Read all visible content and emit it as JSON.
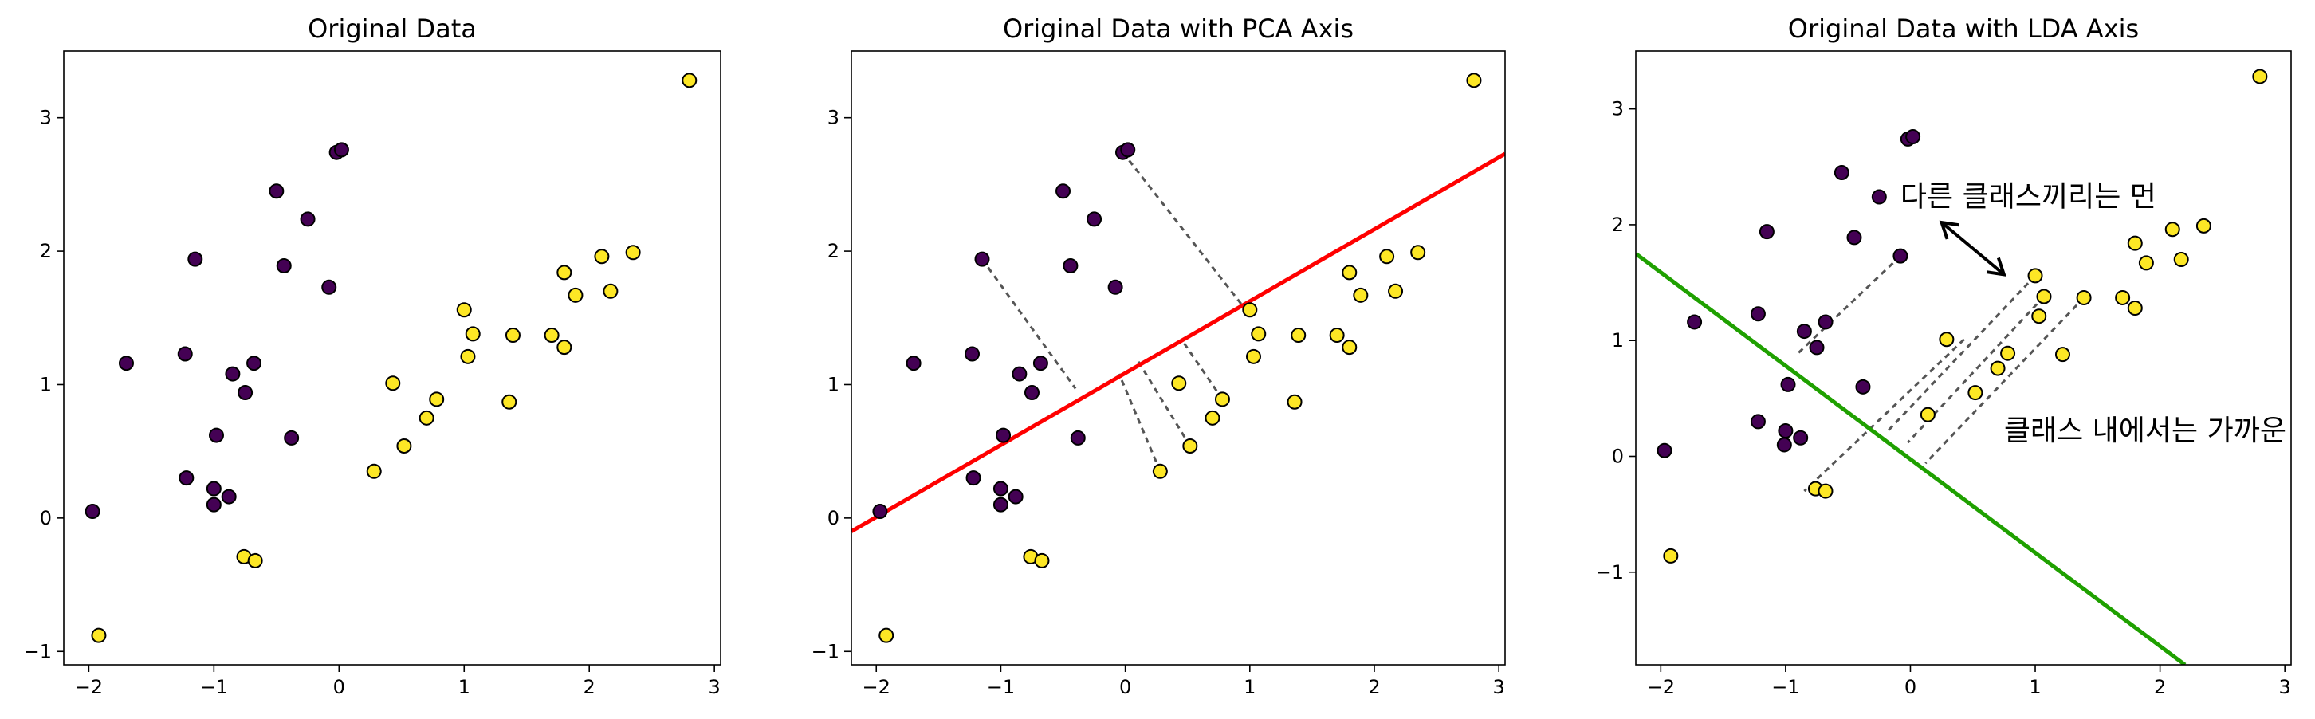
{
  "chart_data": [
    {
      "type": "scatter",
      "title": "Original Data",
      "xlabel": "",
      "ylabel": "",
      "xlim": [
        -2.2,
        3.05
      ],
      "ylim": [
        -1.1,
        3.5
      ],
      "xticks": [
        -2,
        -1,
        0,
        1,
        2,
        3
      ],
      "xtick_labels": [
        "−2",
        "−1",
        "0",
        "1",
        "2",
        "3"
      ],
      "yticks": [
        -1,
        0,
        1,
        2,
        3
      ],
      "ytick_labels": [
        "−1",
        "0",
        "1",
        "2",
        "3"
      ],
      "grid": false,
      "colors": {
        "class0": "#440154",
        "class1": "#fde725",
        "edge": "#000000"
      },
      "series": [
        {
          "points": [
            [
              -1.97,
              0.05
            ],
            [
              -1.7,
              1.16
            ],
            [
              -1.23,
              1.23
            ],
            [
              -1.15,
              1.94
            ],
            [
              -1.22,
              0.3
            ],
            [
              -1.0,
              0.22
            ],
            [
              -1.0,
              0.1
            ],
            [
              -0.98,
              0.62
            ],
            [
              -0.88,
              0.16
            ],
            [
              -0.85,
              1.08
            ],
            [
              -0.75,
              0.94
            ],
            [
              -0.68,
              1.16
            ],
            [
              -0.5,
              2.45
            ],
            [
              -0.44,
              1.89
            ],
            [
              -0.38,
              0.6
            ],
            [
              -0.25,
              2.24
            ],
            [
              -0.08,
              1.73
            ],
            [
              -0.02,
              2.74
            ],
            [
              0.02,
              2.76
            ]
          ]
        },
        {
          "points": [
            [
              -1.92,
              -0.88
            ],
            [
              -0.76,
              -0.29
            ],
            [
              -0.67,
              -0.32
            ],
            [
              0.28,
              0.35
            ],
            [
              0.43,
              1.01
            ],
            [
              0.52,
              0.54
            ],
            [
              0.7,
              0.75
            ],
            [
              0.78,
              0.89
            ],
            [
              1.0,
              1.56
            ],
            [
              1.03,
              1.21
            ],
            [
              1.07,
              1.38
            ],
            [
              1.36,
              0.87
            ],
            [
              1.39,
              1.37
            ],
            [
              1.7,
              1.37
            ],
            [
              1.8,
              1.28
            ],
            [
              1.8,
              1.84
            ],
            [
              1.89,
              1.67
            ],
            [
              2.1,
              1.96
            ],
            [
              2.17,
              1.7
            ],
            [
              2.35,
              1.99
            ],
            [
              2.8,
              3.28
            ]
          ]
        }
      ]
    },
    {
      "type": "scatter",
      "title": "Original Data with PCA Axis",
      "xlabel": "",
      "ylabel": "",
      "xlim": [
        -2.2,
        3.05
      ],
      "ylim": [
        -1.1,
        3.5
      ],
      "xticks": [
        -2,
        -1,
        0,
        1,
        2,
        3
      ],
      "xtick_labels": [
        "−2",
        "−1",
        "0",
        "1",
        "2",
        "3"
      ],
      "yticks": [
        -1,
        0,
        1,
        2,
        3
      ],
      "ytick_labels": [
        "−1",
        "0",
        "1",
        "2",
        "3"
      ],
      "grid": false,
      "colors": {
        "class0": "#440154",
        "class1": "#fde725",
        "edge": "#000000",
        "axis_line": "#ff0000",
        "projection": "#555555"
      },
      "axis_line": [
        [
          -2.2,
          -0.1
        ],
        [
          3.05,
          2.73
        ]
      ],
      "projection_segments": [
        [
          [
            -1.15,
            1.94
          ],
          [
            -0.4,
            0.97
          ]
        ],
        [
          [
            -0.02,
            2.74
          ],
          [
            1.01,
            1.51
          ]
        ],
        [
          [
            0.28,
            0.35
          ],
          [
            -0.05,
            1.08
          ]
        ],
        [
          [
            0.52,
            0.54
          ],
          [
            0.1,
            1.18
          ]
        ],
        [
          [
            0.78,
            0.89
          ],
          [
            0.45,
            1.34
          ]
        ]
      ],
      "series": [
        {
          "points": [
            [
              -1.97,
              0.05
            ],
            [
              -1.7,
              1.16
            ],
            [
              -1.23,
              1.23
            ],
            [
              -1.15,
              1.94
            ],
            [
              -1.22,
              0.3
            ],
            [
              -1.0,
              0.22
            ],
            [
              -1.0,
              0.1
            ],
            [
              -0.98,
              0.62
            ],
            [
              -0.88,
              0.16
            ],
            [
              -0.85,
              1.08
            ],
            [
              -0.75,
              0.94
            ],
            [
              -0.68,
              1.16
            ],
            [
              -0.5,
              2.45
            ],
            [
              -0.44,
              1.89
            ],
            [
              -0.38,
              0.6
            ],
            [
              -0.25,
              2.24
            ],
            [
              -0.08,
              1.73
            ],
            [
              -0.02,
              2.74
            ],
            [
              0.02,
              2.76
            ]
          ]
        },
        {
          "points": [
            [
              -1.92,
              -0.88
            ],
            [
              -0.76,
              -0.29
            ],
            [
              -0.67,
              -0.32
            ],
            [
              0.28,
              0.35
            ],
            [
              0.43,
              1.01
            ],
            [
              0.52,
              0.54
            ],
            [
              0.7,
              0.75
            ],
            [
              0.78,
              0.89
            ],
            [
              1.0,
              1.56
            ],
            [
              1.03,
              1.21
            ],
            [
              1.07,
              1.38
            ],
            [
              1.36,
              0.87
            ],
            [
              1.39,
              1.37
            ],
            [
              1.7,
              1.37
            ],
            [
              1.8,
              1.28
            ],
            [
              1.8,
              1.84
            ],
            [
              1.89,
              1.67
            ],
            [
              2.1,
              1.96
            ],
            [
              2.17,
              1.7
            ],
            [
              2.35,
              1.99
            ],
            [
              2.8,
              3.28
            ]
          ]
        }
      ]
    },
    {
      "type": "scatter",
      "title": "Original Data with LDA Axis",
      "xlabel": "",
      "ylabel": "",
      "xlim": [
        -2.2,
        3.05
      ],
      "ylim": [
        -1.8,
        3.5
      ],
      "xticks": [
        -2,
        -1,
        0,
        1,
        2,
        3
      ],
      "xtick_labels": [
        "−2",
        "−1",
        "0",
        "1",
        "2",
        "3"
      ],
      "yticks": [
        -1,
        0,
        1,
        2,
        3
      ],
      "ytick_labels": [
        "−1",
        "0",
        "1",
        "2",
        "3"
      ],
      "grid": false,
      "colors": {
        "class0": "#440154",
        "class1": "#fde725",
        "edge": "#000000",
        "axis_line": "#1fa000",
        "projection": "#555555",
        "arrow": "#000000"
      },
      "axis_line": [
        [
          -2.2,
          1.75
        ],
        [
          2.2,
          -1.8
        ]
      ],
      "projection_segments": [
        [
          [
            -0.08,
            1.73
          ],
          [
            -0.92,
            0.87
          ]
        ],
        [
          [
            1.0,
            1.56
          ],
          [
            -0.18,
            0.22
          ]
        ],
        [
          [
            1.07,
            1.38
          ],
          [
            -0.02,
            0.12
          ]
        ],
        [
          [
            1.39,
            1.37
          ],
          [
            0.12,
            -0.06
          ]
        ],
        [
          [
            0.43,
            1.01
          ],
          [
            -0.85,
            -0.3
          ]
        ]
      ],
      "annotations": [
        {
          "text": "다른 클래스끼리는 먼",
          "anchor": [
            -0.08,
            2.16
          ]
        },
        {
          "text": "클래스 내에서는 가까운",
          "anchor": [
            0.75,
            0.14
          ]
        }
      ],
      "arrow": [
        [
          0.25,
          2.02
        ],
        [
          0.75,
          1.57
        ]
      ],
      "series": [
        {
          "points": [
            [
              -1.97,
              0.05
            ],
            [
              -1.73,
              1.16
            ],
            [
              -1.22,
              1.23
            ],
            [
              -1.15,
              1.94
            ],
            [
              -1.22,
              0.3
            ],
            [
              -1.0,
              0.22
            ],
            [
              -1.01,
              0.1
            ],
            [
              -0.98,
              0.62
            ],
            [
              -0.88,
              0.16
            ],
            [
              -0.85,
              1.08
            ],
            [
              -0.75,
              0.94
            ],
            [
              -0.68,
              1.16
            ],
            [
              -0.55,
              2.45
            ],
            [
              -0.45,
              1.89
            ],
            [
              -0.38,
              0.6
            ],
            [
              -0.25,
              2.24
            ],
            [
              -0.08,
              1.73
            ],
            [
              -0.02,
              2.74
            ],
            [
              0.02,
              2.76
            ]
          ]
        },
        {
          "points": [
            [
              -1.92,
              -0.86
            ],
            [
              -0.76,
              -0.28
            ],
            [
              -0.68,
              -0.3
            ],
            [
              0.14,
              0.36
            ],
            [
              0.29,
              1.01
            ],
            [
              0.52,
              0.55
            ],
            [
              0.7,
              0.76
            ],
            [
              0.78,
              0.89
            ],
            [
              1.0,
              1.56
            ],
            [
              1.03,
              1.21
            ],
            [
              1.07,
              1.38
            ],
            [
              1.22,
              0.88
            ],
            [
              1.39,
              1.37
            ],
            [
              1.7,
              1.37
            ],
            [
              1.8,
              1.28
            ],
            [
              1.8,
              1.84
            ],
            [
              1.89,
              1.67
            ],
            [
              2.1,
              1.96
            ],
            [
              2.17,
              1.7
            ],
            [
              2.35,
              1.99
            ],
            [
              2.8,
              3.28
            ]
          ]
        }
      ]
    }
  ]
}
